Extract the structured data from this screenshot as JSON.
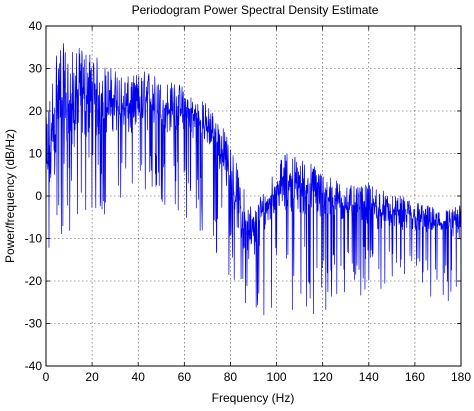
{
  "chart_data": {
    "type": "line",
    "title": "Periodogram Power Spectral Density Estimate",
    "xlabel": "Frequency (Hz)",
    "ylabel": "Power/frequency (dB/Hz)",
    "xlim": [
      0,
      180
    ],
    "ylim": [
      -40,
      40
    ],
    "xticks": [
      0,
      20,
      40,
      60,
      80,
      100,
      120,
      140,
      160,
      180
    ],
    "yticks": [
      -40,
      -30,
      -20,
      -10,
      0,
      10,
      20,
      30,
      40
    ],
    "grid": true,
    "legend": "none",
    "series": [
      {
        "color": "#0000ee",
        "envelope_x": [
          0,
          5,
          10,
          15,
          20,
          25,
          30,
          35,
          40,
          45,
          50,
          55,
          60,
          65,
          70,
          75,
          80,
          85,
          90,
          95,
          100,
          105,
          110,
          115,
          120,
          125,
          130,
          135,
          140,
          145,
          150,
          155,
          160,
          165,
          170,
          175,
          180
        ],
        "envelope_upper": [
          18,
          38,
          34,
          35,
          34,
          31,
          30,
          28,
          29,
          30,
          27,
          27,
          26,
          23,
          22,
          18,
          13,
          3,
          -3,
          3,
          7,
          11,
          9,
          8,
          6,
          4,
          3,
          2,
          3,
          2,
          0,
          0,
          -1,
          -2,
          -3,
          -3,
          -2
        ],
        "envelope_mean": [
          0,
          18,
          15,
          20,
          20,
          19,
          20,
          18,
          19,
          20,
          18,
          19,
          18,
          16,
          15,
          10,
          4,
          -8,
          -12,
          -5,
          0,
          1,
          0,
          -1,
          -2,
          -3,
          -3,
          -4,
          -4,
          -5,
          -5,
          -6,
          -6,
          -7,
          -7,
          -8,
          -8
        ],
        "envelope_lower": [
          -20,
          -15,
          -10,
          -12,
          -5,
          -5,
          -3,
          -1,
          0,
          0,
          -2,
          -3,
          -5,
          -8,
          -12,
          -15,
          -20,
          -26,
          -30,
          -28,
          -25,
          -26,
          -28,
          -29,
          -30,
          -25,
          -24,
          -24,
          -22,
          -22,
          -20,
          -22,
          -23,
          -25,
          -25,
          -28,
          -25
        ]
      }
    ]
  }
}
